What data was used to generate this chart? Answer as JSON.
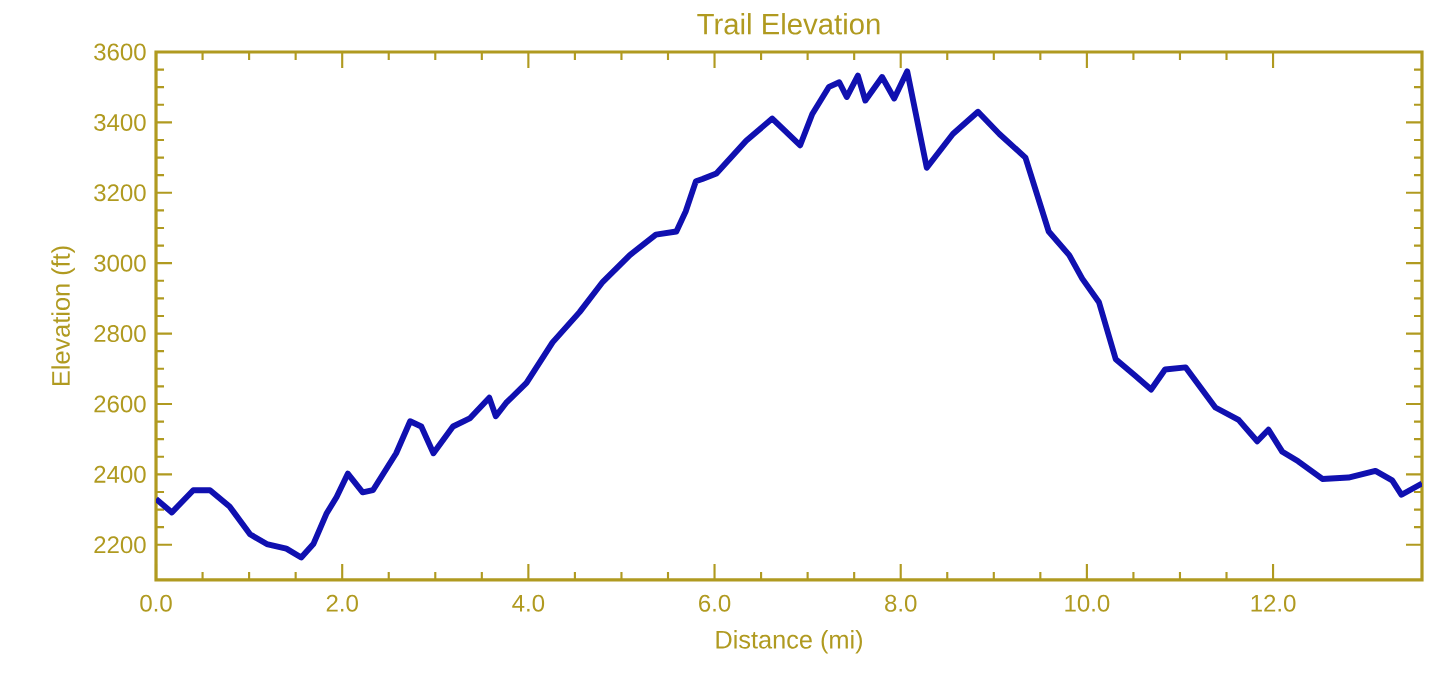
{
  "chart_data": {
    "type": "line",
    "title": "Trail Elevation",
    "xlabel": "Distance (mi)",
    "ylabel": "Elevation (ft)",
    "xlim": [
      0,
      13.6
    ],
    "ylim": [
      2100,
      3600
    ],
    "xticks": [
      {
        "value": 0,
        "label": "0.0"
      },
      {
        "value": 2,
        "label": "2.0"
      },
      {
        "value": 4,
        "label": "4.0"
      },
      {
        "value": 6,
        "label": "6.0"
      },
      {
        "value": 8,
        "label": "8.0"
      },
      {
        "value": 10,
        "label": "10.0"
      },
      {
        "value": 12,
        "label": "12.0"
      }
    ],
    "yticks": [
      2200,
      2400,
      2600,
      2800,
      3000,
      3200,
      3400,
      3600
    ],
    "x": [
      0,
      0.17,
      0.4,
      0.58,
      0.79,
      1.01,
      1.19,
      1.4,
      1.56,
      1.69,
      1.83,
      1.94,
      2.06,
      2.22,
      2.33,
      2.58,
      2.73,
      2.85,
      2.98,
      3.19,
      3.37,
      3.58,
      3.65,
      3.76,
      3.98,
      4.26,
      4.55,
      4.8,
      5.09,
      5.37,
      5.59,
      5.69,
      5.8,
      5.87,
      6.02,
      6.34,
      6.62,
      6.92,
      7.05,
      7.23,
      7.34,
      7.42,
      7.54,
      7.62,
      7.8,
      7.93,
      8.07,
      8.28,
      8.56,
      8.83,
      9.06,
      9.34,
      9.59,
      9.81,
      9.95,
      10.13,
      10.31,
      10.52,
      10.69,
      10.84,
      11.06,
      11.38,
      11.63,
      11.83,
      11.95,
      12.1,
      12.27,
      12.53,
      12.81,
      13.1,
      13.28,
      13.38,
      13.6
    ],
    "series": [
      {
        "color": "#1010b0",
        "values": [
          2330,
          2292,
          2355,
          2355,
          2309,
          2230,
          2202,
          2189,
          2164,
          2202,
          2288,
          2336,
          2402,
          2349,
          2355,
          2460,
          2551,
          2536,
          2460,
          2536,
          2559,
          2618,
          2565,
          2603,
          2660,
          2775,
          2861,
          2947,
          3023,
          3081,
          3090,
          3147,
          3233,
          3239,
          3255,
          3348,
          3411,
          3335,
          3424,
          3501,
          3514,
          3472,
          3533,
          3462,
          3529,
          3468,
          3545,
          3271,
          3367,
          3430,
          3367,
          3300,
          3090,
          3023,
          2956,
          2889,
          2727,
          2680,
          2641,
          2698,
          2704,
          2590,
          2555,
          2494,
          2527,
          2464,
          2437,
          2387,
          2391,
          2410,
          2383,
          2342,
          2374
        ]
      }
    ]
  }
}
